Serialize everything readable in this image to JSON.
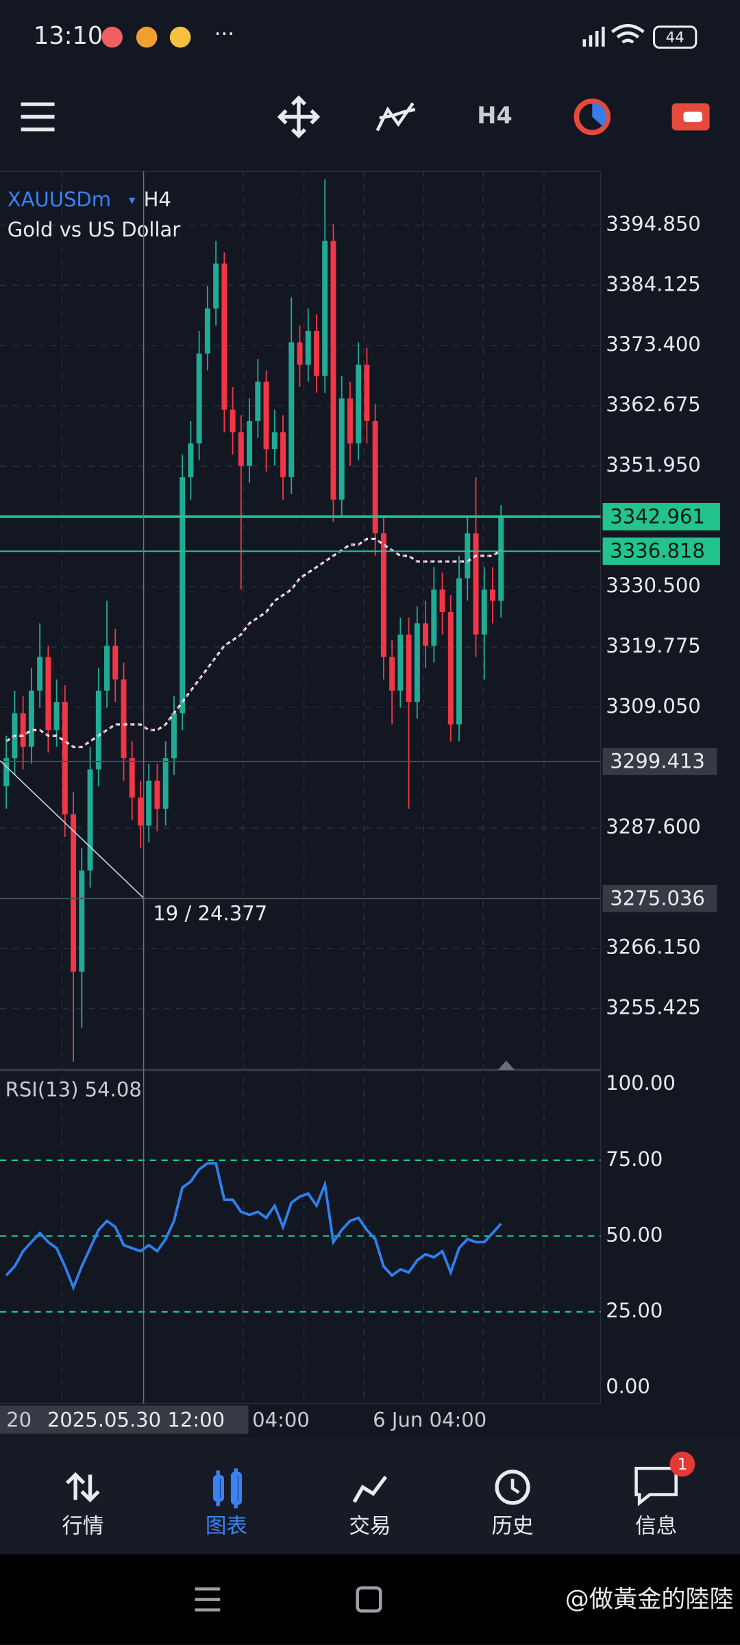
{
  "status": {
    "time": "13:10",
    "battery": "44"
  },
  "tabs": [
    "行情",
    "图表",
    "交易",
    "历史",
    "信息"
  ],
  "badge": "1",
  "watermark": "@做黃金的陸陸",
  "chart_data": {
    "type": "candlestick",
    "symbol": "XAUUSDm",
    "timeframe": "H4",
    "description": "Gold vs US Dollar",
    "grid": true,
    "up_color": "#22ab94",
    "down_color": "#f23645",
    "ylim": [
      3244.9,
      3404.4
    ],
    "yticks": [
      {
        "value": 3394.85,
        "label": "3394.850"
      },
      {
        "value": 3384.125,
        "label": "3384.125"
      },
      {
        "value": 3373.4,
        "label": "3373.400"
      },
      {
        "value": 3362.675,
        "label": "3362.675"
      },
      {
        "value": 3351.95,
        "label": "3351.950"
      },
      {
        "value": 3330.5,
        "label": "3330.500"
      },
      {
        "value": 3319.775,
        "label": "3319.775"
      },
      {
        "value": 3309.05,
        "label": "3309.050"
      },
      {
        "value": 3287.6,
        "label": "3287.600"
      },
      {
        "value": 3266.15,
        "label": "3266.150"
      },
      {
        "value": 3255.425,
        "label": "3255.425"
      }
    ],
    "open": [
      3295,
      3300,
      3308,
      3302,
      3312,
      3318,
      3305,
      3310,
      3290,
      3262,
      3280,
      3298,
      3312,
      3320,
      3314,
      3300,
      3293,
      3288,
      3296,
      3291,
      3300,
      3308,
      3350,
      3356,
      3372,
      3380,
      3388,
      3362,
      3358,
      3352,
      3360,
      3367,
      3355,
      3358,
      3350,
      3374,
      3370,
      3376,
      3368,
      3392,
      3346,
      3364,
      3356,
      3370,
      3360,
      3340,
      3318,
      3312,
      3322,
      3310,
      3324,
      3320,
      3330,
      3326,
      3306,
      3332,
      3340,
      3322,
      3330,
      3328
    ],
    "high": [
      3304,
      3312,
      3311,
      3316,
      3324,
      3320,
      3314,
      3313,
      3294,
      3284,
      3302,
      3316,
      3328,
      3323,
      3317,
      3303,
      3296,
      3299,
      3299,
      3303,
      3311,
      3354,
      3360,
      3376,
      3384,
      3392,
      3390,
      3366,
      3361,
      3364,
      3371,
      3369,
      3362,
      3361,
      3382,
      3377,
      3380,
      3379,
      3403,
      3395,
      3368,
      3367,
      3374,
      3373,
      3363,
      3343,
      3321,
      3325,
      3325,
      3327,
      3328,
      3334,
      3333,
      3329,
      3336,
      3343,
      3350,
      3334,
      3334,
      3345
    ],
    "low": [
      3291,
      3297,
      3298,
      3299,
      3309,
      3301,
      3302,
      3286,
      3246,
      3252,
      3277,
      3295,
      3309,
      3310,
      3296,
      3289,
      3284,
      3285,
      3287,
      3288,
      3297,
      3305,
      3346,
      3353,
      3369,
      3377,
      3358,
      3354,
      3330,
      3349,
      3357,
      3351,
      3352,
      3346,
      3347,
      3366,
      3367,
      3365,
      3365,
      3342,
      3343,
      3352,
      3353,
      3356,
      3336,
      3314,
      3306,
      3309,
      3291,
      3307,
      3316,
      3317,
      3322,
      3303,
      3303,
      3328,
      3318,
      3314,
      3324,
      3325
    ],
    "close": [
      3300,
      3308,
      3302,
      3312,
      3318,
      3305,
      3310,
      3290,
      3262,
      3280,
      3298,
      3312,
      3320,
      3314,
      3300,
      3293,
      3288,
      3296,
      3291,
      3300,
      3308,
      3350,
      3356,
      3372,
      3380,
      3388,
      3362,
      3358,
      3352,
      3360,
      3367,
      3355,
      3358,
      3350,
      3374,
      3370,
      3376,
      3368,
      3392,
      3346,
      3364,
      3356,
      3370,
      3360,
      3340,
      3318,
      3312,
      3322,
      3310,
      3324,
      3320,
      3330,
      3326,
      3306,
      3332,
      3340,
      3322,
      3330,
      3328,
      3342.961
    ],
    "ma": {
      "color": "#ffffff",
      "values": [
        3303,
        3304,
        3304,
        3305,
        3305,
        3304,
        3304,
        3303,
        3302,
        3302,
        3303,
        3304,
        3305,
        3306,
        3306,
        3306,
        3306,
        3305,
        3305,
        3306,
        3308,
        3310,
        3312,
        3314,
        3316,
        3318,
        3320,
        3321,
        3322,
        3324,
        3325,
        3326,
        3328,
        3329,
        3330,
        3332,
        3333,
        3334,
        3335,
        3336,
        3337,
        3338,
        3338,
        3339,
        3339,
        3338,
        3337,
        3336,
        3336,
        3335,
        3335,
        3335,
        3335,
        3335,
        3335,
        3335,
        3336,
        3336,
        3336,
        3337
      ]
    },
    "price_lines": [
      {
        "value": 3342.961,
        "label": "3342.961",
        "color": "#22c38e"
      },
      {
        "value": 3336.818,
        "label": "3336.818",
        "color": "#22c38e"
      },
      {
        "value": 3299.413,
        "label": "3299.413",
        "color": "#4a4f5c"
      },
      {
        "value": 3275.036,
        "label": "3275.036",
        "color": "#4a4f5c"
      }
    ],
    "crosshair_label": "19 / 24.377",
    "x_labels": [
      "20",
      "2025.05.30 12:00",
      "04:00",
      "6 Jun 04:00"
    ],
    "rsi": {
      "title": "RSI(13) 54.08",
      "color": "#2f80ed",
      "level_color": "#22c38e",
      "ylim": [
        -5.2,
        104.8
      ],
      "yticks": [
        {
          "value": 100,
          "label": "100.00"
        },
        {
          "value": 75,
          "label": "75.00"
        },
        {
          "value": 50,
          "label": "50.00"
        },
        {
          "value": 25,
          "label": "25.00"
        },
        {
          "value": 0,
          "label": "0.00"
        }
      ],
      "values": [
        37,
        40,
        45,
        48,
        51,
        48,
        46,
        40,
        33,
        40,
        46,
        52,
        55,
        53,
        47,
        46,
        45,
        47,
        45,
        49,
        55,
        66,
        68,
        72,
        74,
        74,
        62,
        62,
        58,
        57,
        58,
        56,
        60,
        53,
        61,
        63,
        64,
        60,
        67,
        48,
        52,
        55,
        56,
        52,
        49,
        40,
        37,
        39,
        38,
        42,
        44,
        43,
        45,
        38,
        46,
        49,
        48,
        48,
        51,
        54.08
      ]
    }
  }
}
